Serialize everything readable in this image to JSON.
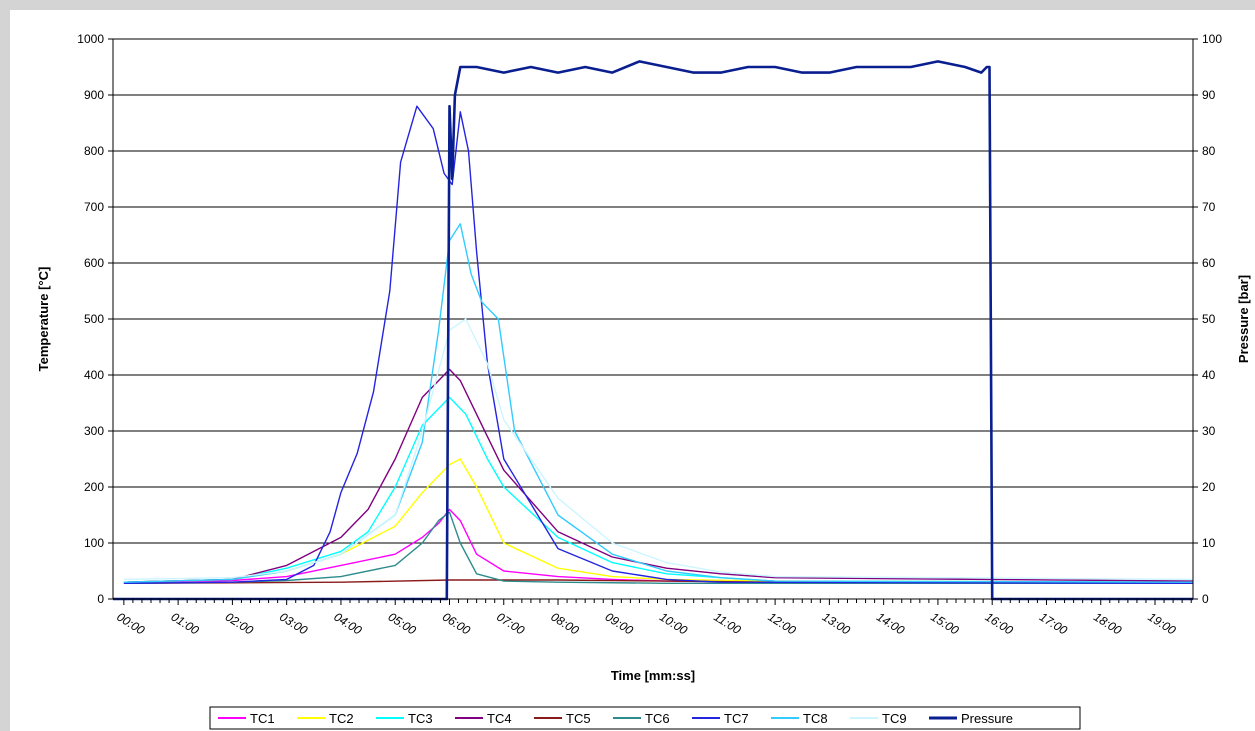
{
  "chart_data": {
    "type": "line",
    "xlabel": "Time [mm:ss]",
    "ylabel": "Temperature [°C]",
    "y2label": "Pressure [bar]",
    "x_ticks": [
      "00:00",
      "01:00",
      "02:00",
      "03:00",
      "04:00",
      "05:00",
      "06:00",
      "07:00",
      "08:00",
      "09:00",
      "10:00",
      "11:00",
      "12:00",
      "13:00",
      "14:00",
      "15:00",
      "16:00",
      "17:00",
      "18:00",
      "19:00"
    ],
    "xlim_minutes": [
      -0.2,
      19.7
    ],
    "ylim": [
      0,
      1000
    ],
    "y_ticks": [
      0,
      100,
      200,
      300,
      400,
      500,
      600,
      700,
      800,
      900,
      1000
    ],
    "y2lim": [
      0,
      100
    ],
    "y2_ticks": [
      0,
      10,
      20,
      30,
      40,
      50,
      60,
      70,
      80,
      90,
      100
    ],
    "grid": "horizontal",
    "legend_position": "bottom",
    "series": [
      {
        "name": "TC1",
        "color": "#ff00ff",
        "axis": "left",
        "x": [
          0,
          2,
          3,
          4,
          5,
          5.5,
          5.8,
          6.0,
          6.2,
          6.5,
          7,
          8,
          9,
          10,
          12,
          19.7
        ],
        "y": [
          30,
          33,
          40,
          60,
          80,
          110,
          135,
          160,
          140,
          80,
          50,
          40,
          35,
          32,
          30,
          30
        ]
      },
      {
        "name": "TC2",
        "color": "#ffff00",
        "axis": "left",
        "x": [
          0,
          2,
          3,
          4,
          5,
          5.5,
          6.0,
          6.2,
          6.5,
          7,
          8,
          9,
          10,
          12,
          19.7
        ],
        "y": [
          30,
          35,
          50,
          80,
          130,
          190,
          240,
          250,
          200,
          100,
          55,
          40,
          35,
          32,
          30
        ]
      },
      {
        "name": "TC3",
        "color": "#00ffff",
        "axis": "left",
        "x": [
          0,
          2,
          3,
          4,
          4.5,
          5,
          5.5,
          6.0,
          6.3,
          6.7,
          7,
          8,
          9,
          10,
          11,
          12,
          19.7
        ],
        "y": [
          30,
          35,
          55,
          85,
          120,
          200,
          310,
          360,
          330,
          250,
          200,
          110,
          65,
          45,
          38,
          32,
          30
        ]
      },
      {
        "name": "TC4",
        "color": "#800080",
        "axis": "left",
        "x": [
          0,
          2,
          3,
          4,
          4.5,
          5,
          5.5,
          6.0,
          6.2,
          6.6,
          7,
          8,
          9,
          10,
          11,
          12,
          19.7
        ],
        "y": [
          30,
          35,
          60,
          110,
          160,
          250,
          360,
          410,
          390,
          310,
          230,
          120,
          75,
          55,
          45,
          38,
          32
        ]
      },
      {
        "name": "TC5",
        "color": "#8b1a1a",
        "axis": "left",
        "x": [
          0,
          2,
          4,
          6,
          8,
          10,
          12,
          19.7
        ],
        "y": [
          28,
          29,
          30,
          34,
          34,
          32,
          30,
          29
        ]
      },
      {
        "name": "TC6",
        "color": "#2e8b8b",
        "axis": "left",
        "x": [
          0,
          2,
          3,
          4,
          5,
          5.5,
          5.8,
          6.0,
          6.2,
          6.5,
          7,
          8,
          10,
          19.7
        ],
        "y": [
          28,
          30,
          33,
          40,
          60,
          100,
          140,
          155,
          100,
          45,
          32,
          30,
          28,
          28
        ]
      },
      {
        "name": "TC7",
        "color": "#2424e0",
        "axis": "left",
        "x": [
          0,
          2,
          3,
          3.5,
          3.8,
          4.0,
          4.3,
          4.6,
          4.9,
          5.1,
          5.4,
          5.7,
          5.9,
          6.05,
          6.2,
          6.35,
          6.5,
          6.7,
          7,
          8,
          9,
          10,
          11,
          19.7
        ],
        "y": [
          28,
          30,
          35,
          60,
          120,
          190,
          260,
          370,
          550,
          780,
          880,
          840,
          760,
          740,
          870,
          800,
          620,
          420,
          250,
          90,
          50,
          35,
          30,
          28
        ]
      },
      {
        "name": "TC8",
        "color": "#33ccff",
        "axis": "left",
        "x": [
          0,
          2,
          3,
          4,
          5,
          5.5,
          5.8,
          6.0,
          6.2,
          6.4,
          6.6,
          6.9,
          7.2,
          8,
          9,
          10,
          11,
          12,
          19.7
        ],
        "y": [
          30,
          35,
          50,
          80,
          150,
          280,
          480,
          640,
          670,
          580,
          530,
          500,
          300,
          150,
          80,
          50,
          38,
          32,
          30
        ]
      },
      {
        "name": "TC9",
        "color": "#ccf5ff",
        "axis": "left",
        "x": [
          0,
          2,
          3,
          4,
          5,
          5.5,
          6.0,
          6.3,
          6.7,
          7,
          8,
          9,
          10,
          11,
          12,
          19.7
        ],
        "y": [
          35,
          38,
          50,
          80,
          150,
          300,
          480,
          500,
          420,
          320,
          180,
          100,
          65,
          48,
          40,
          35
        ]
      },
      {
        "name": "Pressure",
        "color": "#0a1f8f",
        "axis": "right",
        "x": [
          -0.2,
          5.95,
          6.0,
          6.05,
          6.1,
          6.2,
          6.3,
          6.5,
          7,
          7.5,
          8,
          8.5,
          9,
          9.5,
          10,
          10.5,
          11,
          11.5,
          12,
          12.5,
          13,
          13.5,
          14,
          14.5,
          15,
          15.5,
          15.8,
          15.9,
          15.95,
          16.0,
          19.7
        ],
        "y": [
          0,
          0,
          88,
          75,
          90,
          95,
          95,
          95,
          94,
          95,
          94,
          95,
          94,
          96,
          95,
          94,
          94,
          95,
          95,
          94,
          94,
          95,
          95,
          95,
          96,
          95,
          94,
          95,
          95,
          0,
          0
        ]
      }
    ]
  }
}
